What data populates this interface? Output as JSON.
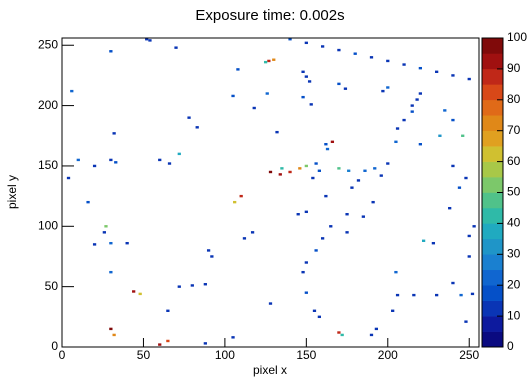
{
  "chart_data": {
    "type": "heatmap",
    "title": "Exposure time: 0.002s",
    "xlabel": "pixel x",
    "ylabel": "pixel y",
    "xlim": [
      0,
      256
    ],
    "ylim": [
      0,
      256
    ],
    "xticks": [
      0,
      50,
      100,
      150,
      200,
      250
    ],
    "yticks": [
      0,
      50,
      100,
      150,
      200,
      250
    ],
    "zlim": [
      0,
      100
    ],
    "zticks": [
      0,
      10,
      20,
      30,
      40,
      50,
      60,
      70,
      80,
      90,
      100
    ],
    "colors": [
      "#0a0a80",
      "#0d1a9e",
      "#0a35b5",
      "#0550c8",
      "#1066d0",
      "#1a80d0",
      "#1f95c8",
      "#20aac0",
      "#2fbaa8",
      "#50c28a",
      "#7cc86a",
      "#a8c848",
      "#d0c030",
      "#e0a020",
      "#e08818",
      "#e06a18",
      "#d84818",
      "#c02818",
      "#a01010",
      "#800a0a"
    ],
    "x": [
      140,
      150,
      160,
      170,
      180,
      190,
      200,
      210,
      220,
      230,
      240,
      250,
      52,
      54,
      127,
      125,
      130,
      30,
      70,
      6,
      108,
      148,
      150,
      152,
      105,
      170,
      174,
      200,
      197,
      126,
      220,
      218,
      215,
      148,
      153,
      118,
      215,
      210,
      206,
      235,
      240,
      78,
      83,
      205,
      220,
      232,
      246,
      32,
      132,
      162,
      166,
      163,
      10,
      20,
      30,
      33,
      60,
      66,
      72,
      4,
      128,
      134,
      140,
      146,
      150,
      156,
      158,
      154,
      135,
      170,
      176,
      186,
      192,
      196,
      182,
      178,
      200,
      110,
      106,
      162,
      175,
      185,
      191,
      240,
      248,
      244,
      16,
      238,
      145,
      150,
      27,
      26,
      20,
      30,
      40,
      160,
      156,
      150,
      148,
      117,
      112,
      165,
      175,
      222,
      228,
      90,
      92,
      253,
      250,
      250,
      205,
      30,
      240,
      72,
      80,
      88,
      44,
      48,
      150,
      128,
      206,
      216,
      230,
      245,
      252,
      65,
      155,
      158,
      170,
      172,
      30,
      32,
      60,
      65,
      88,
      190,
      193,
      203,
      248,
      105
    ],
    "y": [
      255,
      252,
      249,
      246,
      243,
      240,
      237,
      234,
      231,
      228,
      225,
      222,
      255,
      254,
      237,
      236,
      238,
      245,
      248,
      212,
      230,
      228,
      224,
      220,
      208,
      218,
      214,
      215,
      212,
      210,
      210,
      205,
      200,
      207,
      201,
      198,
      195,
      188,
      181,
      196,
      188,
      190,
      182,
      170,
      168,
      175,
      175,
      177,
      178,
      168,
      170,
      164,
      155,
      150,
      155,
      153,
      155,
      152,
      160,
      140,
      145,
      143,
      145,
      148,
      150,
      152,
      146,
      140,
      148,
      148,
      146,
      146,
      148,
      142,
      138,
      132,
      152,
      125,
      120,
      125,
      110,
      108,
      120,
      150,
      140,
      132,
      120,
      115,
      110,
      112,
      100,
      95,
      85,
      86,
      86,
      90,
      80,
      70,
      62,
      95,
      90,
      100,
      95,
      88,
      86,
      80,
      75,
      100,
      92,
      75,
      62,
      62,
      53,
      50,
      51,
      52,
      46,
      44,
      45,
      36,
      43,
      43,
      43,
      43,
      44,
      30,
      30,
      25,
      12,
      10,
      15,
      10,
      2,
      5,
      3,
      10,
      15,
      30,
      21,
      8
    ],
    "values": [
      15,
      12,
      14,
      12,
      15,
      12,
      14,
      12,
      15,
      12,
      14,
      12,
      10,
      12,
      85,
      40,
      70,
      15,
      12,
      20,
      15,
      12,
      14,
      12,
      15,
      15,
      14,
      20,
      12,
      20,
      12,
      14,
      12,
      15,
      12,
      12,
      15,
      12,
      12,
      20,
      15,
      12,
      12,
      20,
      15,
      30,
      45,
      12,
      14,
      15,
      90,
      20,
      20,
      14,
      12,
      15,
      12,
      12,
      35,
      12,
      95,
      90,
      85,
      70,
      50,
      15,
      15,
      12,
      40,
      45,
      25,
      20,
      20,
      12,
      12,
      12,
      14,
      85,
      60,
      12,
      12,
      12,
      14,
      12,
      12,
      15,
      15,
      12,
      12,
      14,
      50,
      12,
      12,
      20,
      14,
      12,
      15,
      12,
      12,
      12,
      12,
      14,
      12,
      35,
      12,
      12,
      14,
      12,
      12,
      14,
      20,
      20,
      12,
      12,
      12,
      12,
      90,
      60,
      15,
      12,
      12,
      14,
      12,
      20,
      14,
      12,
      12,
      12,
      85,
      40,
      95,
      70,
      90,
      80,
      12,
      12,
      12,
      12,
      12,
      12
    ]
  }
}
